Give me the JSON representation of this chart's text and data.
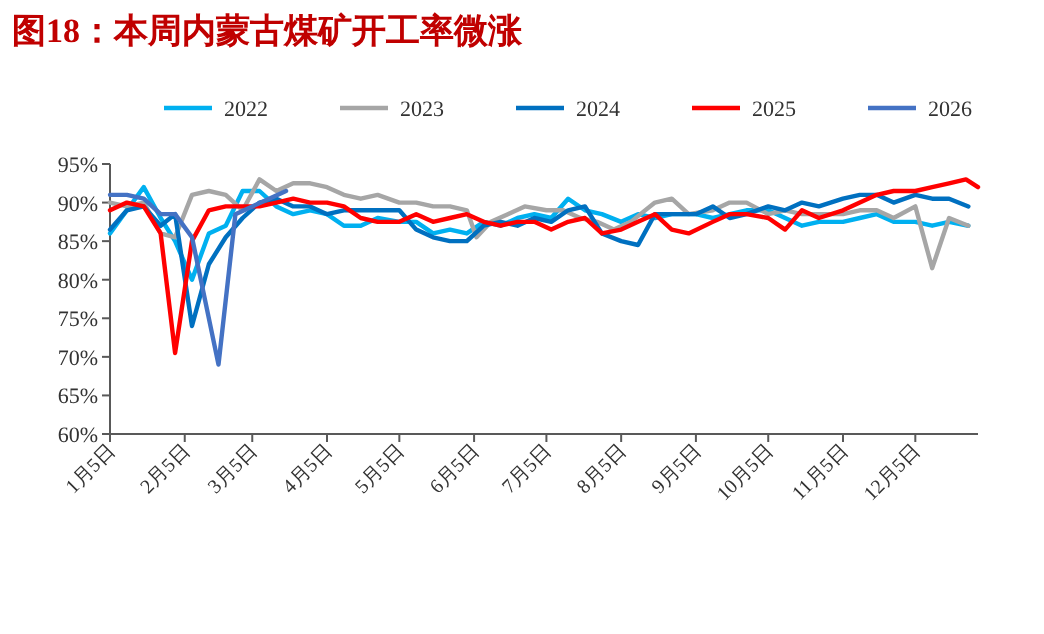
{
  "chart_data": {
    "type": "line",
    "title": "图18：本周内蒙古煤矿开工率微涨",
    "legend": "top",
    "grid": false,
    "marker": "none",
    "line_style": "solid",
    "xlim": [
      "--01-05",
      "--12-31"
    ],
    "xticks": [
      {
        "value": "--01-05",
        "label": "1月5日"
      },
      {
        "value": "--02-05",
        "label": "2月5日"
      },
      {
        "value": "--03-05",
        "label": "3月5日"
      },
      {
        "value": "--04-05",
        "label": "4月5日"
      },
      {
        "value": "--05-05",
        "label": "5月5日"
      },
      {
        "value": "--06-05",
        "label": "6月5日"
      },
      {
        "value": "--07-05",
        "label": "7月5日"
      },
      {
        "value": "--08-05",
        "label": "8月5日"
      },
      {
        "value": "--09-05",
        "label": "9月5日"
      },
      {
        "value": "--10-05",
        "label": "10月5日"
      },
      {
        "value": "--11-05",
        "label": "11月5日"
      },
      {
        "value": "--12-05",
        "label": "12月5日"
      }
    ],
    "ylim": [
      60,
      95
    ],
    "yticks": [
      {
        "value": 60,
        "label": "60%"
      },
      {
        "value": 65,
        "label": "65%"
      },
      {
        "value": 70,
        "label": "70%"
      },
      {
        "value": 75,
        "label": "75%"
      },
      {
        "value": 80,
        "label": "80%"
      },
      {
        "value": 85,
        "label": "85%"
      },
      {
        "value": 90,
        "label": "90%"
      },
      {
        "value": 95,
        "label": "95%"
      }
    ],
    "series": [
      {
        "name": "2022",
        "color": "#00b0f0",
        "x": [
          "--01-05",
          "--01-12",
          "--01-19",
          "--01-26",
          "--02-01",
          "--02-08",
          "--02-15",
          "--02-22",
          "--03-01",
          "--03-08",
          "--03-15",
          "--03-22",
          "--03-29",
          "--04-05",
          "--04-12",
          "--04-19",
          "--04-26",
          "--05-05",
          "--05-12",
          "--05-19",
          "--05-26",
          "--06-02",
          "--06-09",
          "--06-16",
          "--06-23",
          "--06-30",
          "--07-07",
          "--07-14",
          "--07-21",
          "--07-28",
          "--08-05",
          "--08-12",
          "--08-19",
          "--08-26",
          "--09-05",
          "--09-12",
          "--09-19",
          "--09-26",
          "--10-05",
          "--10-12",
          "--10-19",
          "--10-26",
          "--11-05",
          "--11-12",
          "--11-19",
          "--11-26",
          "--12-05",
          "--12-12",
          "--12-19",
          "--12-27"
        ],
        "values": [
          86,
          89,
          92,
          88,
          85,
          80,
          86,
          87,
          91.5,
          91.5,
          89.5,
          88.5,
          89,
          88.5,
          87,
          87,
          88,
          87.5,
          87.5,
          86,
          86.5,
          86,
          87.5,
          87,
          88,
          88.5,
          88,
          90.5,
          89,
          88.5,
          87.5,
          88.5,
          88,
          88.5,
          88.5,
          88,
          88.5,
          89,
          89,
          88,
          87,
          87.5,
          87.5,
          88,
          88.5,
          87.5,
          87.5,
          87,
          87.5,
          87
        ]
      },
      {
        "name": "2023",
        "color": "#a6a6a6",
        "x": [
          "--01-05",
          "--01-12",
          "--01-19",
          "--01-26",
          "--02-01",
          "--02-08",
          "--02-15",
          "--02-22",
          "--03-01",
          "--03-08",
          "--03-15",
          "--03-22",
          "--03-29",
          "--04-05",
          "--04-12",
          "--04-19",
          "--04-26",
          "--05-05",
          "--05-12",
          "--05-19",
          "--05-26",
          "--06-02",
          "--06-06",
          "--06-12",
          "--06-19",
          "--06-26",
          "--07-05",
          "--07-12",
          "--07-19",
          "--07-26",
          "--08-02",
          "--08-09",
          "--08-19",
          "--08-26",
          "--09-02",
          "--09-12",
          "--09-19",
          "--09-26",
          "--10-05",
          "--10-12",
          "--10-19",
          "--10-26",
          "--11-05",
          "--11-12",
          "--11-19",
          "--11-26",
          "--12-05",
          "--12-12",
          "--12-19",
          "--12-27"
        ],
        "values": [
          90,
          89.5,
          90,
          86,
          85.5,
          91,
          91.5,
          91,
          89,
          93,
          91.5,
          92.5,
          92.5,
          92,
          91,
          90.5,
          91,
          90,
          90,
          89.5,
          89.5,
          89,
          85.5,
          87.5,
          88.5,
          89.5,
          89,
          89,
          88,
          87.5,
          86.5,
          87.5,
          90,
          90.5,
          88.5,
          89,
          90,
          90,
          88.5,
          89,
          88.5,
          88.5,
          88.5,
          89,
          89,
          88,
          89.5,
          81.5,
          88,
          87
        ]
      },
      {
        "name": "2024",
        "color": "#0070c0",
        "x": [
          "--01-05",
          "--01-12",
          "--01-19",
          "--01-26",
          "--02-01",
          "--02-08",
          "--02-15",
          "--02-22",
          "--03-01",
          "--03-08",
          "--03-15",
          "--03-22",
          "--03-29",
          "--04-05",
          "--04-12",
          "--04-19",
          "--04-26",
          "--05-05",
          "--05-12",
          "--05-19",
          "--05-26",
          "--06-02",
          "--06-09",
          "--06-16",
          "--06-23",
          "--06-30",
          "--07-07",
          "--07-14",
          "--07-21",
          "--07-28",
          "--08-05",
          "--08-12",
          "--08-19",
          "--08-26",
          "--09-05",
          "--09-12",
          "--09-19",
          "--09-26",
          "--10-05",
          "--10-12",
          "--10-19",
          "--10-26",
          "--11-05",
          "--11-12",
          "--11-19",
          "--11-26",
          "--12-05",
          "--12-12",
          "--12-19",
          "--12-27"
        ],
        "values": [
          86.5,
          89,
          89.5,
          87,
          88.5,
          74,
          82,
          85.5,
          88,
          90,
          90.5,
          89.5,
          89.5,
          88.5,
          89,
          89,
          89,
          89,
          86.5,
          85.5,
          85,
          85,
          87,
          87.5,
          87,
          88,
          87.5,
          89,
          89.5,
          86,
          85,
          84.5,
          88.5,
          88.5,
          88.5,
          89.5,
          88,
          88.5,
          89.5,
          89,
          90,
          89.5,
          90.5,
          91,
          91,
          90,
          91,
          90.5,
          90.5,
          89.5
        ]
      },
      {
        "name": "2025",
        "color": "#ff0000",
        "x": [
          "--01-05",
          "--01-12",
          "--01-19",
          "--01-26",
          "--02-01",
          "--02-08",
          "--02-15",
          "--02-22",
          "--03-01",
          "--03-08",
          "--03-15",
          "--03-22",
          "--03-29",
          "--04-05",
          "--04-12",
          "--04-19",
          "--04-26",
          "--05-05",
          "--05-12",
          "--05-19",
          "--05-26",
          "--06-02",
          "--06-09",
          "--06-16",
          "--06-23",
          "--06-30",
          "--07-07",
          "--07-14",
          "--07-21",
          "--07-28",
          "--08-05",
          "--08-12",
          "--08-19",
          "--08-26",
          "--09-02",
          "--09-12",
          "--09-19",
          "--09-26",
          "--10-05",
          "--10-12",
          "--10-19",
          "--10-26",
          "--11-05",
          "--11-12",
          "--11-19",
          "--11-26",
          "--12-05",
          "--12-12",
          "--12-19",
          "--12-26",
          "--12-31"
        ],
        "values": [
          89,
          90,
          89.5,
          86,
          70.5,
          85,
          89,
          89.5,
          89.5,
          89.5,
          90,
          90.5,
          90,
          90,
          89.5,
          88,
          87.5,
          87.5,
          88.5,
          87.5,
          88,
          88.5,
          87.5,
          87,
          87.5,
          87.5,
          86.5,
          87.5,
          88,
          86,
          86.5,
          87.5,
          88.5,
          86.5,
          86,
          87.5,
          88.5,
          88.5,
          88,
          86.5,
          89,
          88,
          89,
          90,
          91,
          91.5,
          91.5,
          92,
          92.5,
          93,
          92
        ]
      },
      {
        "name": "2026",
        "color": "#4472c4",
        "x": [
          "--01-05",
          "--01-12",
          "--01-19",
          "--01-26",
          "--02-01",
          "--02-08",
          "--02-19",
          "--02-26",
          "--03-05",
          "--03-12",
          "--03-19"
        ],
        "values": [
          91,
          91,
          90.5,
          88.5,
          88.5,
          85.5,
          69,
          88.5,
          89.5,
          90.5,
          91.5
        ]
      }
    ]
  }
}
